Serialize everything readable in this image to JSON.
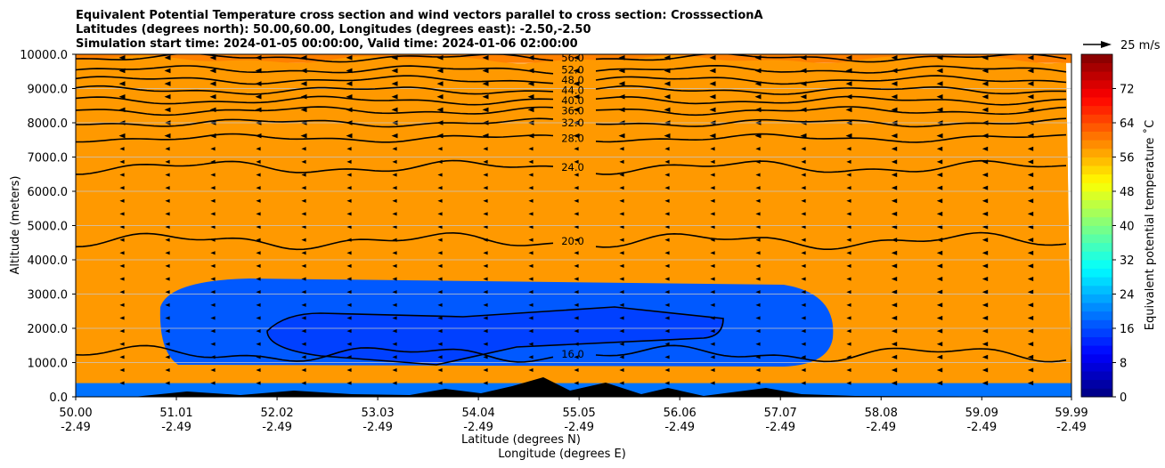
{
  "title_lines": [
    "Equivalent Potential Temperature cross section and wind vectors parallel to cross section: CrosssectionA",
    "Latitudes (degrees north): 50.00,60.00, Longitudes (degrees east): -2.50,-2.50",
    "Simulation start time: 2024-01-05 00:00:00, Valid time: 2024-01-06 02:00:00"
  ],
  "wind_key_label": "25 m/s",
  "chart_data": {
    "type": "heatmap",
    "title": "Equivalent Potential Temperature cross section and wind vectors parallel to cross section: CrosssectionA",
    "ylabel": "Altitude (meters)",
    "xlabel": "Latitude (degrees N)",
    "xlabel2": "Longitude (degrees E)",
    "ylim": [
      0,
      10000
    ],
    "xlim": [
      50.0,
      59.99
    ],
    "yticks": [
      0,
      1000,
      2000,
      3000,
      4000,
      5000,
      6000,
      7000,
      8000,
      9000,
      10000
    ],
    "ytick_labels": [
      "0.0",
      "1000.0",
      "2000.0",
      "3000.0",
      "4000.0",
      "5000.0",
      "6000.0",
      "7000.0",
      "8000.0",
      "9000.0",
      "10000.0"
    ],
    "xticks": [
      {
        "lat": "50.00",
        "lon": "-2.49"
      },
      {
        "lat": "51.01",
        "lon": "-2.49"
      },
      {
        "lat": "52.02",
        "lon": "-2.49"
      },
      {
        "lat": "53.03",
        "lon": "-2.49"
      },
      {
        "lat": "54.04",
        "lon": "-2.49"
      },
      {
        "lat": "55.05",
        "lon": "-2.49"
      },
      {
        "lat": "56.06",
        "lon": "-2.49"
      },
      {
        "lat": "57.07",
        "lon": "-2.49"
      },
      {
        "lat": "58.08",
        "lon": "-2.49"
      },
      {
        "lat": "59.09",
        "lon": "-2.49"
      },
      {
        "lat": "59.99",
        "lon": "-2.49"
      }
    ],
    "colorbar": {
      "label": "Equivalent potential temperature ˚C",
      "range": [
        0,
        80
      ],
      "ticks": [
        "0",
        "8",
        "16",
        "24",
        "32",
        "40",
        "48",
        "56",
        "64",
        "72"
      ],
      "colormap": "jet"
    },
    "contours": [
      {
        "value": 56.0,
        "label": "56.0",
        "alt": 9900
      },
      {
        "value": 52.0,
        "label": "52.0",
        "alt": 9550
      },
      {
        "value": 48.0,
        "label": "48.0",
        "alt": 9250
      },
      {
        "value": 44.0,
        "label": "44.0",
        "alt": 8950
      },
      {
        "value": 40.0,
        "label": "40.0",
        "alt": 8650
      },
      {
        "value": 36.0,
        "label": "36.0",
        "alt": 8350
      },
      {
        "value": 32.0,
        "label": "32.0",
        "alt": 8000
      },
      {
        "value": 28.0,
        "label": "28.0",
        "alt": 7550
      },
      {
        "value": 24.0,
        "label": "24.0",
        "alt": 6700
      },
      {
        "value": 20.0,
        "label": "20.0",
        "alt": 4550
      },
      {
        "value": 16.0,
        "label": "16.0",
        "alt": 1250
      }
    ],
    "grid": "horizontal",
    "wind_vector_key": "25 m/s"
  }
}
